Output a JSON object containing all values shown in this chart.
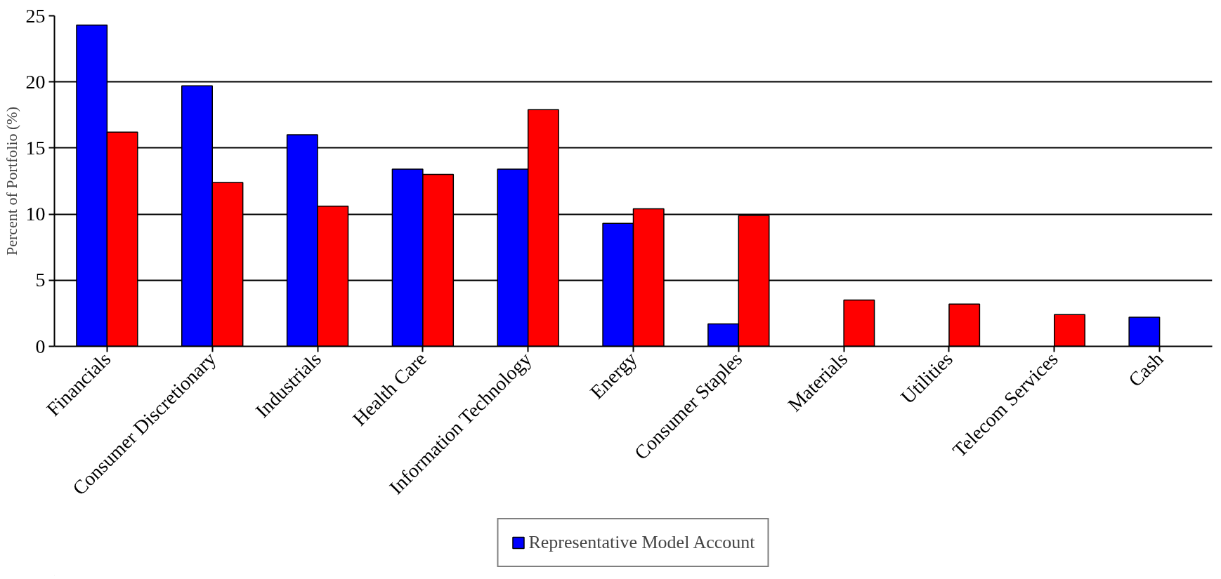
{
  "chart_data": {
    "type": "bar",
    "ylabel": "Percent of Portfolio (%)",
    "categories": [
      "Financials",
      "Consumer Discretionary",
      "Industrials",
      "Health Care",
      "Information Technology",
      "Energy",
      "Consumer Staples",
      "Materials",
      "Utilities",
      "Telecom Services",
      "Cash"
    ],
    "series": [
      {
        "name": "Representative Model Account",
        "color": "#0000ff",
        "values": [
          24.3,
          19.7,
          16.0,
          13.4,
          13.4,
          9.3,
          1.7,
          null,
          null,
          null,
          2.2
        ]
      },
      {
        "color": "#ff0000",
        "values": [
          16.2,
          12.4,
          10.6,
          13.0,
          17.9,
          10.4,
          9.9,
          3.5,
          3.2,
          2.4,
          null
        ]
      }
    ],
    "ylim": [
      0,
      25
    ],
    "yticks": [
      0,
      5,
      10,
      15,
      20,
      25
    ],
    "grid": "y",
    "legend": "bottom"
  }
}
